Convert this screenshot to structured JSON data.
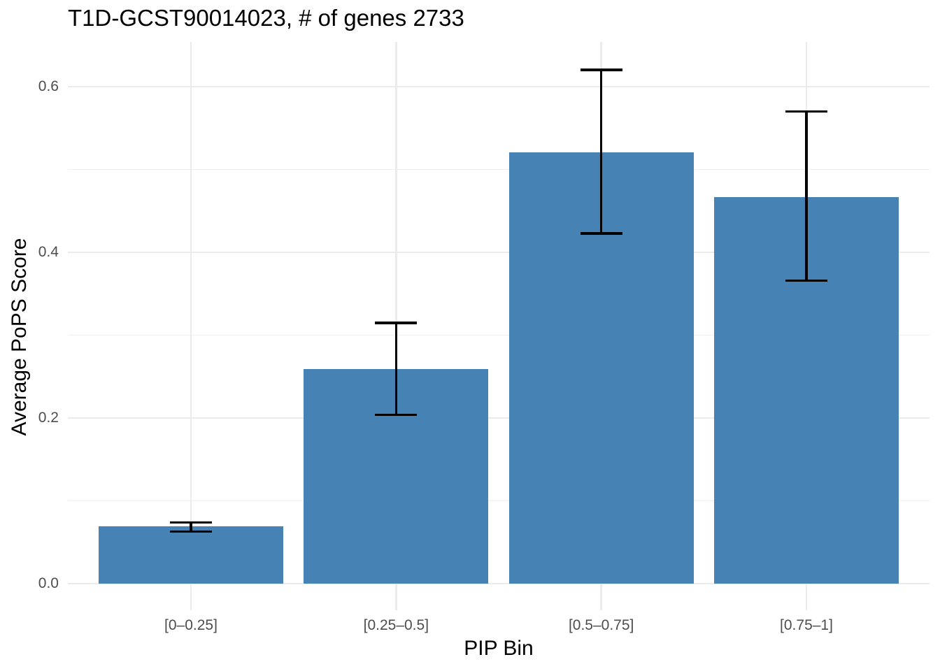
{
  "chart_data": {
    "type": "bar",
    "title": "T1D-GCST90014023, # of genes 2733",
    "xlabel": "PIP Bin",
    "ylabel": "Average PoPS Score",
    "categories": [
      "[0–0.25]",
      "[0.25–0.5]",
      "[0.5–0.75]",
      "[0.75–1]"
    ],
    "values": [
      0.069,
      0.259,
      0.521,
      0.467
    ],
    "error_low": [
      0.063,
      0.204,
      0.423,
      0.366
    ],
    "error_high": [
      0.074,
      0.315,
      0.62,
      0.57
    ],
    "y_ticks": [
      0.0,
      0.2,
      0.4,
      0.6
    ],
    "y_tick_labels": [
      "0.0",
      "0.2",
      "0.4",
      "0.6"
    ],
    "y_minor_ticks": [
      0.1,
      0.3,
      0.5
    ],
    "ylim": [
      -0.032,
      0.654
    ],
    "grid": true,
    "legend": "none",
    "colors": {
      "bar_fill": "#4682B4",
      "error_bar": "#000000",
      "grid_major": "#EBEBEB",
      "grid_minor": "#EFEFEF",
      "axis_text": "#4D4D4D",
      "title_text": "#000000",
      "background": "#FFFFFF"
    }
  }
}
